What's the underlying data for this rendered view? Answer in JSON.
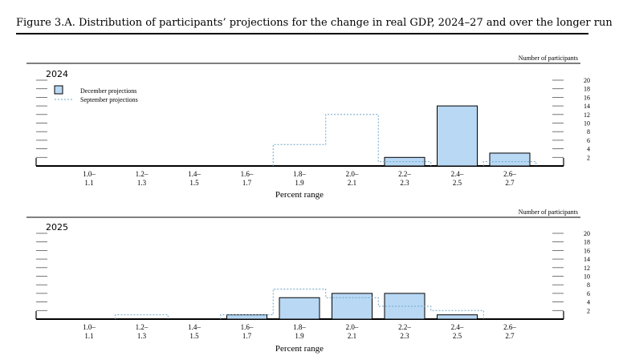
{
  "figure": {
    "title": "Figure 3.A. Distribution of participants’ projections for the change in real GDP, 2024–27 and over the longer run"
  },
  "colors": {
    "bar_fill": "#b8d8f4",
    "bar_stroke": "#000000",
    "dashed_line": "#6ea6c8",
    "rule": "#000000"
  },
  "chart_data": [
    {
      "type": "bar",
      "title": "2024",
      "ylabel": "Number of participants",
      "xlabel": "Percent range",
      "ylim": [
        0,
        20
      ],
      "yticks": [
        2,
        4,
        6,
        8,
        10,
        12,
        14,
        16,
        18,
        20
      ],
      "categories": [
        "1.0–\n1.1",
        "1.2–\n1.3",
        "1.4–\n1.5",
        "1.6–\n1.7",
        "1.8–\n1.9",
        "2.0–\n2.1",
        "2.2–\n2.3",
        "2.4–\n2.5",
        "2.6–\n2.7"
      ],
      "legend": [
        "December projections",
        "September projections"
      ],
      "series": [
        {
          "name": "December projections",
          "style": "bar",
          "values": [
            0,
            0,
            0,
            0,
            0,
            0,
            2,
            14,
            3
          ]
        },
        {
          "name": "September projections",
          "style": "dashed-step",
          "values": [
            0,
            0,
            0,
            0,
            5,
            12,
            1,
            0,
            1
          ]
        }
      ]
    },
    {
      "type": "bar",
      "title": "2025",
      "ylabel": "Number of participants",
      "xlabel": "Percent range",
      "ylim": [
        0,
        20
      ],
      "yticks": [
        2,
        4,
        6,
        8,
        10,
        12,
        14,
        16,
        18,
        20
      ],
      "categories": [
        "1.0–\n1.1",
        "1.2–\n1.3",
        "1.4–\n1.5",
        "1.6–\n1.7",
        "1.8–\n1.9",
        "2.0–\n2.1",
        "2.2–\n2.3",
        "2.4–\n2.5",
        "2.6–\n2.7"
      ],
      "series": [
        {
          "name": "December projections",
          "style": "bar",
          "values": [
            0,
            0,
            0,
            1,
            5,
            6,
            6,
            1,
            0
          ]
        },
        {
          "name": "September projections",
          "style": "dashed-step",
          "values": [
            0,
            1,
            0,
            1,
            7,
            5,
            3,
            2,
            0
          ]
        }
      ]
    }
  ]
}
